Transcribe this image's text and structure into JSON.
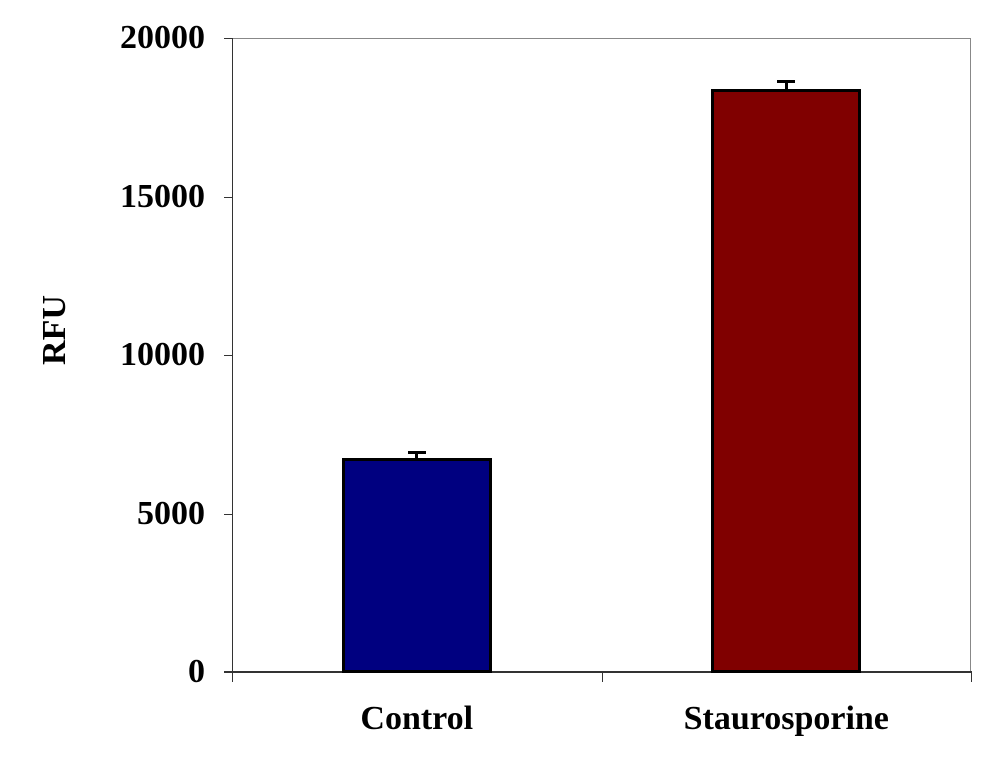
{
  "chart_data": {
    "type": "bar",
    "title": "",
    "xlabel": "",
    "ylabel": "RFU",
    "categories": [
      "Control",
      "Staurosporine"
    ],
    "values": [
      6750,
      18380
    ],
    "error": [
      220,
      280
    ],
    "colors": [
      "#000080",
      "#800000"
    ],
    "ylim": [
      0,
      20000
    ],
    "yticks": [
      0,
      5000,
      10000,
      15000,
      20000
    ],
    "ytick_labels": [
      "0",
      "5000",
      "10000",
      "15000",
      "20000"
    ],
    "grid": false,
    "legend": null
  }
}
